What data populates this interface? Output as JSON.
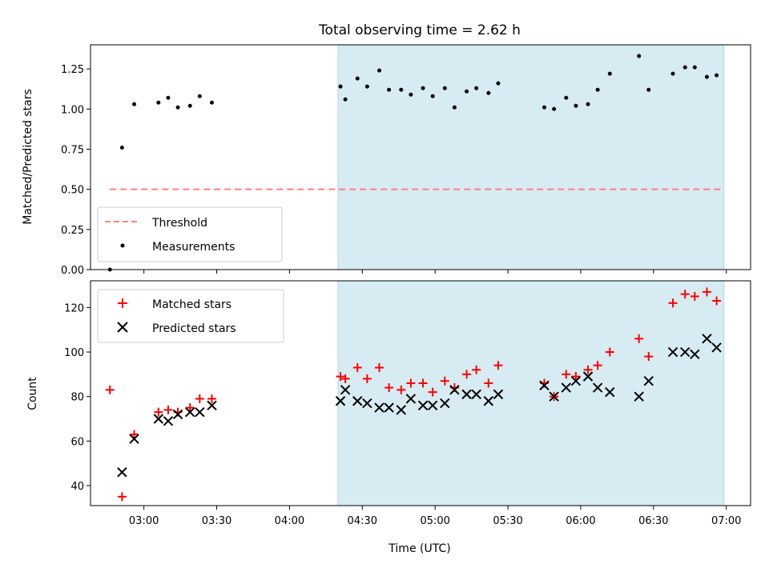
{
  "chart_data": {
    "type": "scatter",
    "title": "Total observing time = 2.62 h",
    "xlabel": "Time (UTC)",
    "x_tick_labels": [
      "03:00",
      "03:30",
      "04:00",
      "04:30",
      "05:00",
      "05:30",
      "06:00",
      "06:30",
      "07:00"
    ],
    "xlim": [
      "02:38",
      "07:10"
    ],
    "shaded_span": [
      "04:20",
      "06:59"
    ],
    "shade_color": "#add8e6",
    "panels": [
      {
        "ylabel": "Matched/Predicted stars",
        "ylim": [
          0,
          1.4
        ],
        "y_ticks": [
          "0.00",
          "0.25",
          "0.50",
          "0.75",
          "1.00",
          "1.25"
        ],
        "legend_position": "lower-left",
        "threshold": {
          "name": "Threshold",
          "y": 0.5,
          "x_range": [
            "02:46",
            "06:59"
          ],
          "color": "#ff7f7f",
          "style": "dashed"
        },
        "series": [
          {
            "name": "Measurements",
            "marker": "dot",
            "color": "#000000",
            "points": [
              [
                "02:46",
                0.0
              ],
              [
                "02:51",
                0.76
              ],
              [
                "02:56",
                1.03
              ],
              [
                "03:06",
                1.04
              ],
              [
                "03:10",
                1.07
              ],
              [
                "03:14",
                1.01
              ],
              [
                "03:19",
                1.02
              ],
              [
                "03:23",
                1.08
              ],
              [
                "03:28",
                1.04
              ],
              [
                "04:21",
                1.14
              ],
              [
                "04:23",
                1.06
              ],
              [
                "04:28",
                1.19
              ],
              [
                "04:32",
                1.14
              ],
              [
                "04:37",
                1.24
              ],
              [
                "04:41",
                1.12
              ],
              [
                "04:46",
                1.12
              ],
              [
                "04:50",
                1.09
              ],
              [
                "04:55",
                1.13
              ],
              [
                "04:59",
                1.08
              ],
              [
                "05:04",
                1.13
              ],
              [
                "05:08",
                1.01
              ],
              [
                "05:13",
                1.11
              ],
              [
                "05:17",
                1.13
              ],
              [
                "05:22",
                1.1
              ],
              [
                "05:26",
                1.16
              ],
              [
                "05:45",
                1.01
              ],
              [
                "05:49",
                1.0
              ],
              [
                "05:54",
                1.07
              ],
              [
                "05:58",
                1.02
              ],
              [
                "06:03",
                1.03
              ],
              [
                "06:07",
                1.12
              ],
              [
                "06:12",
                1.22
              ],
              [
                "06:24",
                1.33
              ],
              [
                "06:28",
                1.12
              ],
              [
                "06:38",
                1.22
              ],
              [
                "06:43",
                1.26
              ],
              [
                "06:47",
                1.26
              ],
              [
                "06:52",
                1.2
              ],
              [
                "06:56",
                1.21
              ]
            ]
          }
        ]
      },
      {
        "ylabel": "Count",
        "ylim": [
          31,
          132
        ],
        "y_ticks": [
          "40",
          "60",
          "80",
          "100",
          "120"
        ],
        "legend_position": "upper-left",
        "series": [
          {
            "name": "Matched stars",
            "marker": "plus",
            "color": "#ff0000",
            "points": [
              [
                "02:46",
                83
              ],
              [
                "02:51",
                35
              ],
              [
                "02:56",
                63
              ],
              [
                "03:06",
                73
              ],
              [
                "03:10",
                74
              ],
              [
                "03:14",
                73
              ],
              [
                "03:19",
                75
              ],
              [
                "03:23",
                79
              ],
              [
                "03:28",
                79
              ],
              [
                "04:21",
                89
              ],
              [
                "04:23",
                88
              ],
              [
                "04:28",
                93
              ],
              [
                "04:32",
                88
              ],
              [
                "04:37",
                93
              ],
              [
                "04:41",
                84
              ],
              [
                "04:46",
                83
              ],
              [
                "04:50",
                86
              ],
              [
                "04:55",
                86
              ],
              [
                "04:59",
                82
              ],
              [
                "05:04",
                87
              ],
              [
                "05:08",
                84
              ],
              [
                "05:13",
                90
              ],
              [
                "05:17",
                92
              ],
              [
                "05:22",
                86
              ],
              [
                "05:26",
                94
              ],
              [
                "05:45",
                86
              ],
              [
                "05:49",
                80
              ],
              [
                "05:54",
                90
              ],
              [
                "05:58",
                89
              ],
              [
                "06:03",
                92
              ],
              [
                "06:07",
                94
              ],
              [
                "06:12",
                100
              ],
              [
                "06:24",
                106
              ],
              [
                "06:28",
                98
              ],
              [
                "06:38",
                122
              ],
              [
                "06:43",
                126
              ],
              [
                "06:47",
                125
              ],
              [
                "06:52",
                127
              ],
              [
                "06:56",
                123
              ]
            ]
          },
          {
            "name": "Predicted stars",
            "marker": "x",
            "color": "#000000",
            "points": [
              [
                "02:51",
                46
              ],
              [
                "02:56",
                61
              ],
              [
                "03:06",
                70
              ],
              [
                "03:10",
                69
              ],
              [
                "03:14",
                72
              ],
              [
                "03:19",
                73
              ],
              [
                "03:23",
                73
              ],
              [
                "03:28",
                76
              ],
              [
                "04:21",
                78
              ],
              [
                "04:23",
                83
              ],
              [
                "04:28",
                78
              ],
              [
                "04:32",
                77
              ],
              [
                "04:37",
                75
              ],
              [
                "04:41",
                75
              ],
              [
                "04:46",
                74
              ],
              [
                "04:50",
                79
              ],
              [
                "04:55",
                76
              ],
              [
                "04:59",
                76
              ],
              [
                "05:04",
                77
              ],
              [
                "05:08",
                83
              ],
              [
                "05:13",
                81
              ],
              [
                "05:17",
                81
              ],
              [
                "05:22",
                78
              ],
              [
                "05:26",
                81
              ],
              [
                "05:45",
                85
              ],
              [
                "05:49",
                80
              ],
              [
                "05:54",
                84
              ],
              [
                "05:58",
                87
              ],
              [
                "06:03",
                89
              ],
              [
                "06:07",
                84
              ],
              [
                "06:12",
                82
              ],
              [
                "06:24",
                80
              ],
              [
                "06:28",
                87
              ],
              [
                "06:38",
                100
              ],
              [
                "06:43",
                100
              ],
              [
                "06:47",
                99
              ],
              [
                "06:52",
                106
              ],
              [
                "06:56",
                102
              ]
            ]
          }
        ]
      }
    ]
  }
}
